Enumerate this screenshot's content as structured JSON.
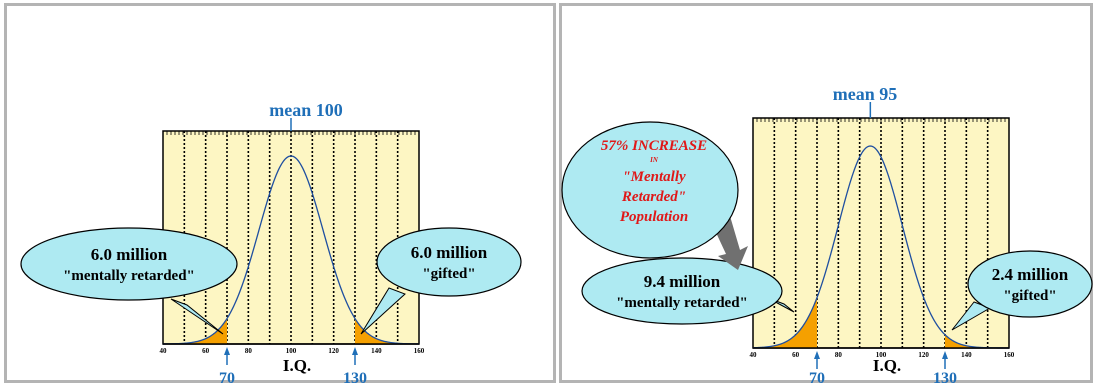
{
  "chart_data": [
    {
      "type": "area",
      "distribution": "normal",
      "mean": 100,
      "sd": 15,
      "xlim": [
        40,
        160
      ],
      "xticks": [
        40,
        60,
        80,
        100,
        120,
        140,
        160
      ],
      "xticklabels": [
        "40",
        "60",
        "80",
        "100",
        "120",
        "140",
        "160"
      ],
      "xlabel": "I.Q.",
      "ylabel": "",
      "grid": true,
      "shaded_regions": [
        {
          "from": 40,
          "to": 70
        },
        {
          "from": 130,
          "to": 160
        }
      ],
      "cutoffs": [
        {
          "x": 70,
          "label": "70"
        },
        {
          "x": 130,
          "label": "130"
        }
      ],
      "annotations": {
        "mean": {
          "x": 100,
          "label": "mean 100"
        },
        "lower": {
          "line1": "6.0 million",
          "line2": "\"mentally retarded\""
        },
        "upper": {
          "line1": "6.0 million",
          "line2": "\"gifted\""
        }
      }
    },
    {
      "type": "area",
      "distribution": "normal",
      "mean": 95,
      "sd": 15,
      "xlim": [
        40,
        160
      ],
      "xticks": [
        40,
        60,
        80,
        100,
        120,
        140,
        160
      ],
      "xticklabels": [
        "40",
        "60",
        "80",
        "100",
        "120",
        "140",
        "160"
      ],
      "xlabel": "I.Q.",
      "ylabel": "",
      "grid": true,
      "shaded_regions": [
        {
          "from": 40,
          "to": 70
        },
        {
          "from": 130,
          "to": 160
        }
      ],
      "cutoffs": [
        {
          "x": 70,
          "label": "70"
        },
        {
          "x": 130,
          "label": "130"
        }
      ],
      "annotations": {
        "mean": {
          "x": 95,
          "label": "mean 95"
        },
        "lower": {
          "line1": "9.4 million",
          "line2": "\"mentally retarded\""
        },
        "upper": {
          "line1": "2.4 million",
          "line2": "\"gifted\""
        },
        "callout": {
          "line1": "57% INCREASE",
          "line2": "IN",
          "line3": "\"Mentally",
          "line4": "Retarded\"",
          "line5": "Population"
        }
      }
    }
  ],
  "colors": {
    "plot_background": "#fdf6c3",
    "shaded_tail": "#f5a000",
    "curve": "#1f4fa0",
    "label_blue": "#1f6fb8",
    "bubble_fill": "#aeeaf2",
    "callout_text": "#e01818",
    "arrow_gray": "#707070"
  }
}
